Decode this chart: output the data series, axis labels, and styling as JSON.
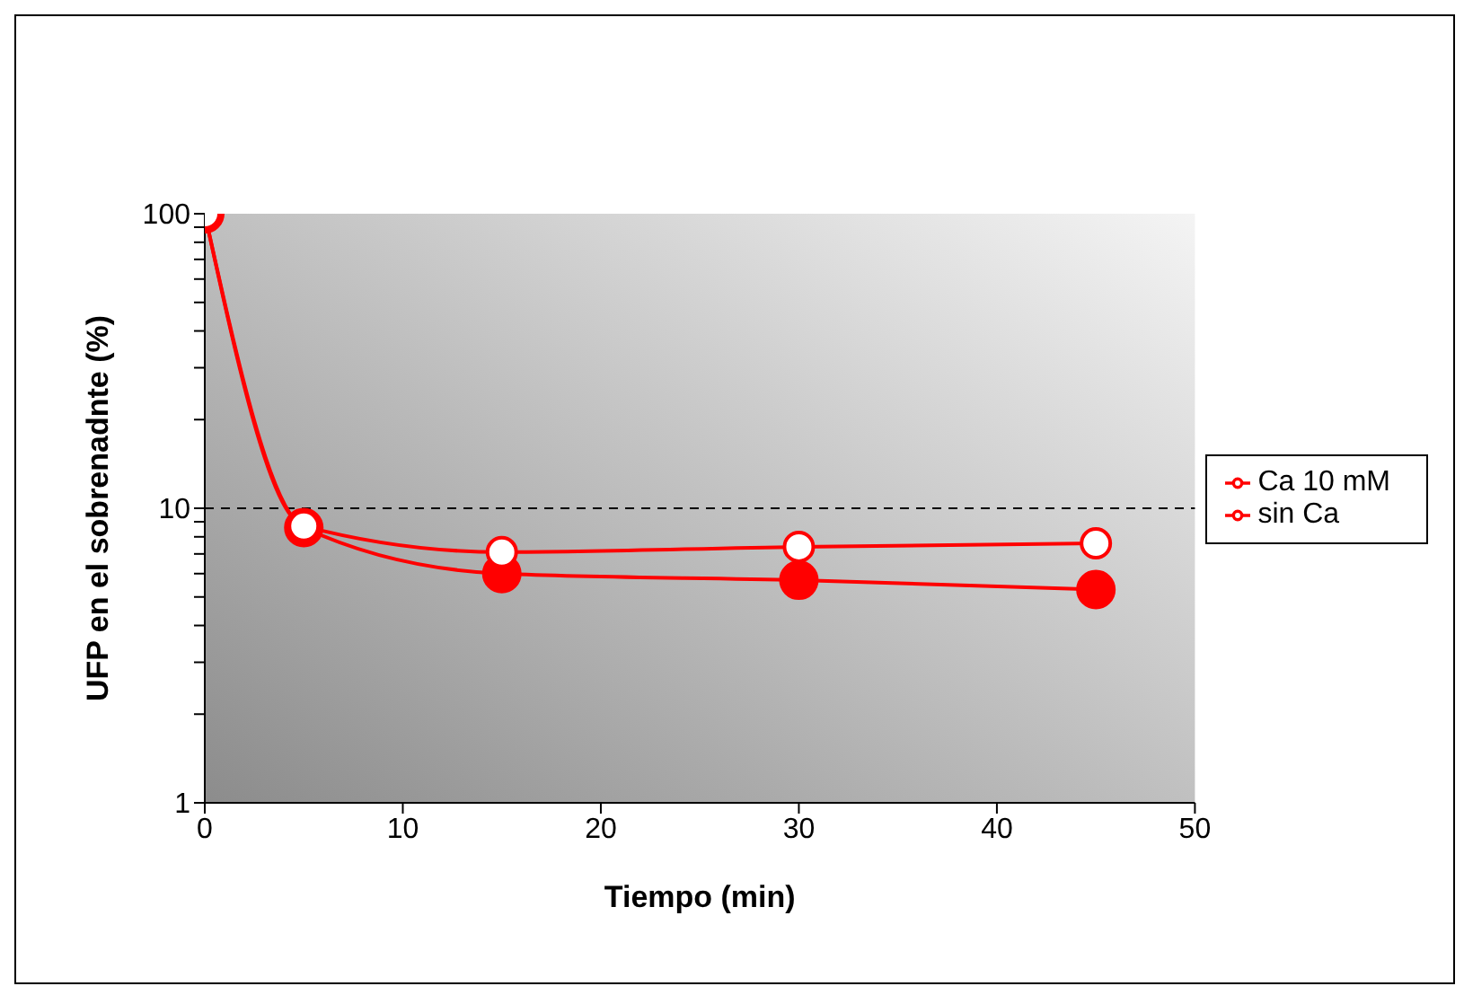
{
  "chart_data": {
    "type": "line",
    "xlabel": "Tiempo (min)",
    "ylabel": "UFP en el sobrenadnte (%)",
    "x": [
      0,
      5,
      15,
      30,
      45
    ],
    "series": [
      {
        "name": "Ca 10 mM",
        "color": "#ff0000",
        "values": [
          100,
          8.6,
          6.0,
          5.7,
          5.3
        ]
      },
      {
        "name": "sin Ca",
        "color": "#ff0000",
        "values": [
          100,
          8.7,
          7.1,
          7.4,
          7.6
        ]
      }
    ],
    "xlim": [
      0,
      50
    ],
    "xticks": [
      0,
      10,
      20,
      30,
      40,
      50
    ],
    "log": "y",
    "ylim": [
      1,
      100
    ],
    "yticks": [
      1,
      {
        "value": 2,
        "label": null
      },
      {
        "value": 3,
        "label": null
      },
      {
        "value": 4,
        "label": null
      },
      {
        "value": 5,
        "label": null
      },
      {
        "value": 6,
        "label": null
      },
      {
        "value": 7,
        "label": null
      },
      {
        "value": 8,
        "label": null
      },
      {
        "value": 9,
        "label": null
      },
      10,
      {
        "value": 20,
        "label": null
      },
      {
        "value": 30,
        "label": null
      },
      {
        "value": 40,
        "label": null
      },
      {
        "value": 50,
        "label": null
      },
      {
        "value": 60,
        "label": null
      },
      {
        "value": 70,
        "label": null
      },
      {
        "value": 80,
        "label": null
      },
      {
        "value": 90,
        "label": null
      },
      100
    ],
    "ref_lines": [
      {
        "axis": "y",
        "value": 10,
        "color": "#000000",
        "line_style": "dashed"
      }
    ],
    "grid": false,
    "legend": "right",
    "marker": "circle",
    "line_style": "solid"
  }
}
